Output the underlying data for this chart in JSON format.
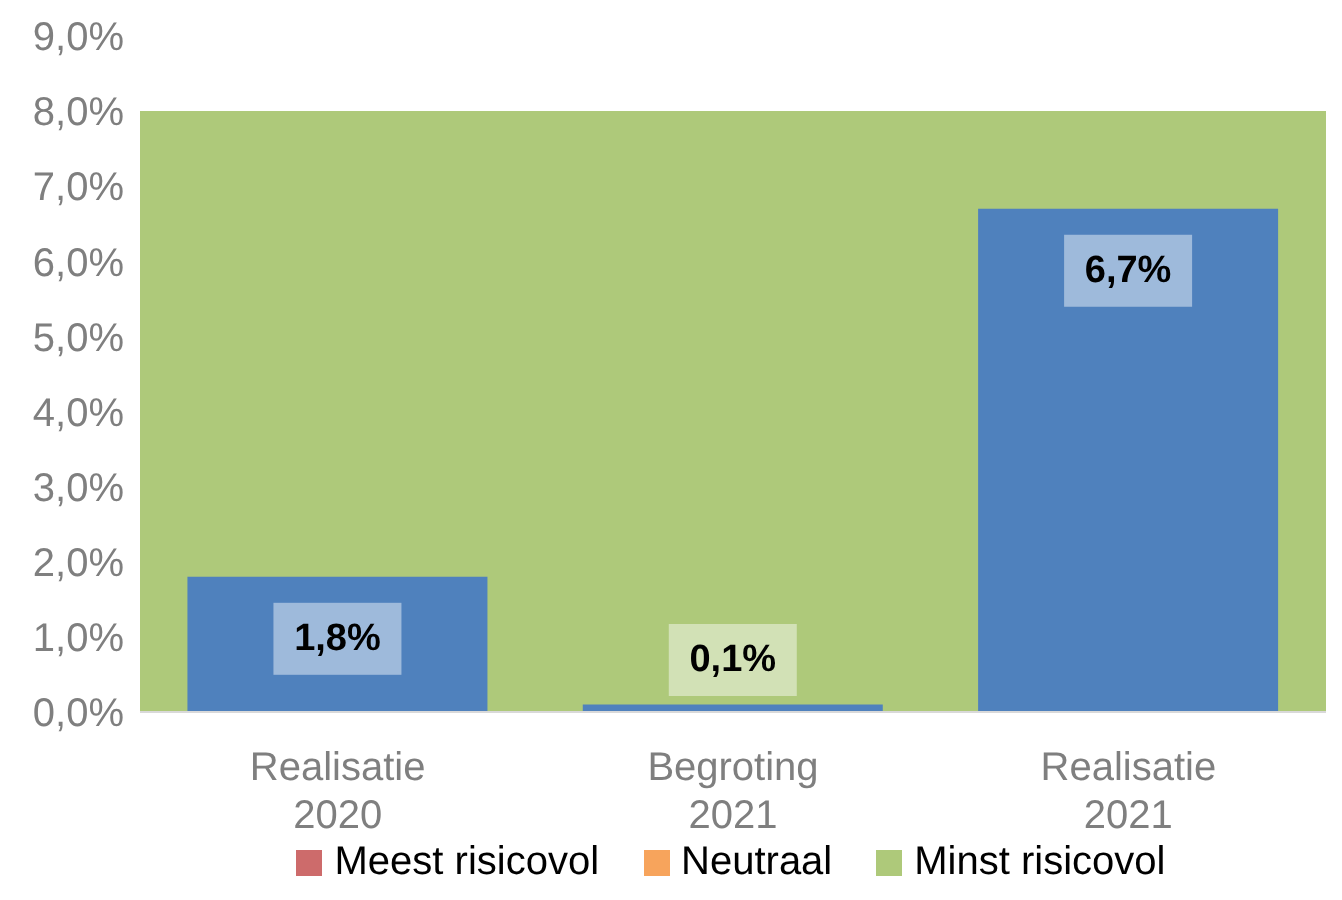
{
  "chart_data": {
    "type": "bar",
    "categories": [
      "Realisatie 2020",
      "Begroting 2021",
      "Realisatie 2021"
    ],
    "series": [
      {
        "name": "Meest risicovol",
        "type": "area",
        "color": "#cd6b6b",
        "values": [
          null,
          null,
          null
        ]
      },
      {
        "name": "Neutraal",
        "type": "area",
        "color": "#f7a45c",
        "values": [
          null,
          null,
          null
        ]
      },
      {
        "color": "#4f81bd",
        "values": [
          1.8,
          0.1,
          6.7
        ],
        "value_labels": [
          "1,8%",
          "0,1%",
          "6,7%"
        ]
      }
    ],
    "ylim": [
      0,
      9
    ],
    "yticks": [
      {
        "value": 0,
        "label": "0,0%"
      },
      {
        "value": 1,
        "label": "1,0%"
      },
      {
        "value": 2,
        "label": "2,0%"
      },
      {
        "value": 3,
        "label": "3,0%"
      },
      {
        "value": 4,
        "label": "4,0%"
      },
      {
        "value": 5,
        "label": "5,0%"
      },
      {
        "value": 6,
        "label": "6,0%"
      },
      {
        "value": 7,
        "label": "7,0%"
      },
      {
        "value": 8,
        "label": "8,0%"
      },
      {
        "value": 9,
        "label": "9,0%"
      }
    ],
    "bands": [
      {
        "axis": "y",
        "from": 0,
        "to": 8,
        "label": "Minst risicovol",
        "color": "#aec97a"
      }
    ],
    "legend": "bottom",
    "grid": false
  }
}
